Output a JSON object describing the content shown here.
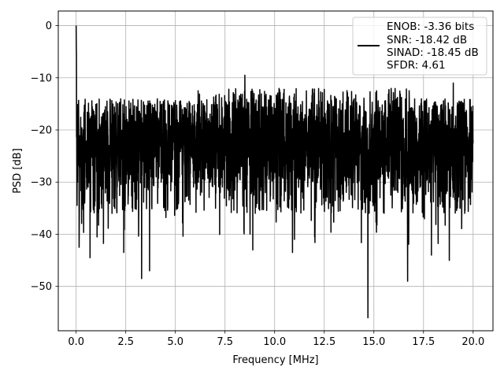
{
  "chart_data": {
    "type": "line",
    "title": "",
    "xlabel": "Frequency [MHz]",
    "ylabel": "PSD [dB]",
    "xlim": [
      -0.9,
      21.0
    ],
    "ylim": [
      -58.5,
      2.8
    ],
    "x_ticks": [
      0.0,
      2.5,
      5.0,
      7.5,
      10.0,
      12.5,
      15.0,
      17.5,
      20.0
    ],
    "x_tick_labels": [
      "0.0",
      "2.5",
      "5.0",
      "7.5",
      "10.0",
      "12.5",
      "15.0",
      "17.5",
      "20.0"
    ],
    "y_ticks": [
      0,
      -10,
      -20,
      -30,
      -40,
      -50
    ],
    "y_tick_labels": [
      "0",
      "−10",
      "−20",
      "−30",
      "−40",
      "−50"
    ],
    "grid": true,
    "legend_position": "top-right",
    "legend_lines": [
      "ENOB: -3.36 bits",
      "SNR: -18.42 dB",
      "SINAD: -18.45 dB",
      "SFDR: 4.61"
    ],
    "series": [
      {
        "color": "#000000",
        "x_start": 0.0,
        "x_end": 20.0,
        "features": [
          {
            "x": 0.0,
            "y": 0.0
          },
          {
            "x": 0.15,
            "y": -42.5
          },
          {
            "x": 0.7,
            "y": -44.5
          },
          {
            "x": 2.4,
            "y": -43.5
          },
          {
            "x": 3.3,
            "y": -48.5
          },
          {
            "x": 3.7,
            "y": -47.0
          },
          {
            "x": 8.5,
            "y": -9.5
          },
          {
            "x": 8.9,
            "y": -43.0
          },
          {
            "x": 10.9,
            "y": -43.5
          },
          {
            "x": 14.7,
            "y": -56.0
          },
          {
            "x": 16.7,
            "y": -49.0
          },
          {
            "x": 17.9,
            "y": -44.0
          },
          {
            "x": 18.8,
            "y": -45.0
          },
          {
            "x": 19.0,
            "y": -11.0
          }
        ],
        "noise_band": {
          "upper": -14.0,
          "lower": -36.0,
          "typical_upper": -17.5,
          "typical_lower": -29.5
        }
      }
    ]
  }
}
